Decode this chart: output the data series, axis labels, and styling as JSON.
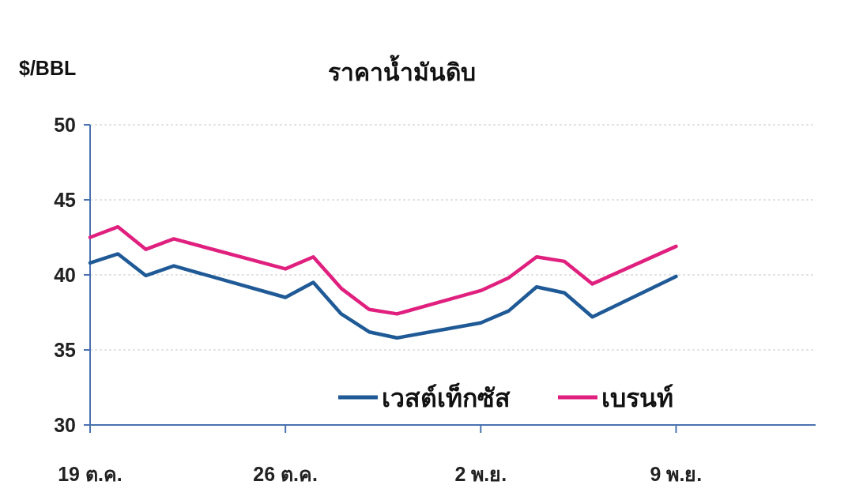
{
  "chart_data": {
    "type": "line",
    "title": "ราคาน้ำมันดิบ",
    "ylabel": "$/BBL",
    "x": [
      "--10-19",
      "--10-20",
      "--10-21",
      "--10-22",
      "--10-26",
      "--10-27",
      "--10-28",
      "--10-29",
      "--10-30",
      "--11-02",
      "--11-03",
      "--11-04",
      "--11-05",
      "--11-06",
      "--11-09"
    ],
    "series": [
      {
        "name": "เวสต์เท็กซัส",
        "color": "#1f5a96",
        "values": [
          40.8,
          41.4,
          39.95,
          40.6,
          38.5,
          39.5,
          37.4,
          36.2,
          35.8,
          36.8,
          37.6,
          39.2,
          38.8,
          37.2,
          39.9
        ]
      },
      {
        "name": "เบรนท์",
        "color": "#e0207f",
        "values": [
          42.5,
          43.2,
          41.7,
          42.4,
          40.4,
          41.2,
          39.1,
          37.7,
          37.4,
          38.95,
          39.8,
          41.2,
          40.9,
          39.4,
          41.9
        ]
      }
    ],
    "xlim": [
      "--10-19",
      "--11-14"
    ],
    "xticks": [
      {
        "value": "--10-19",
        "label": "19 ต.ค."
      },
      {
        "value": "--10-26",
        "label": "26 ต.ค."
      },
      {
        "value": "--11-02",
        "label": "2 พ.ย."
      },
      {
        "value": "--11-09",
        "label": "9 พ.ย."
      }
    ],
    "ylim": [
      30,
      50
    ],
    "yticks": [
      30,
      35,
      40,
      45,
      50
    ],
    "grid": "y",
    "legend": "bottom right",
    "marker": "none",
    "line_style": "solid"
  }
}
